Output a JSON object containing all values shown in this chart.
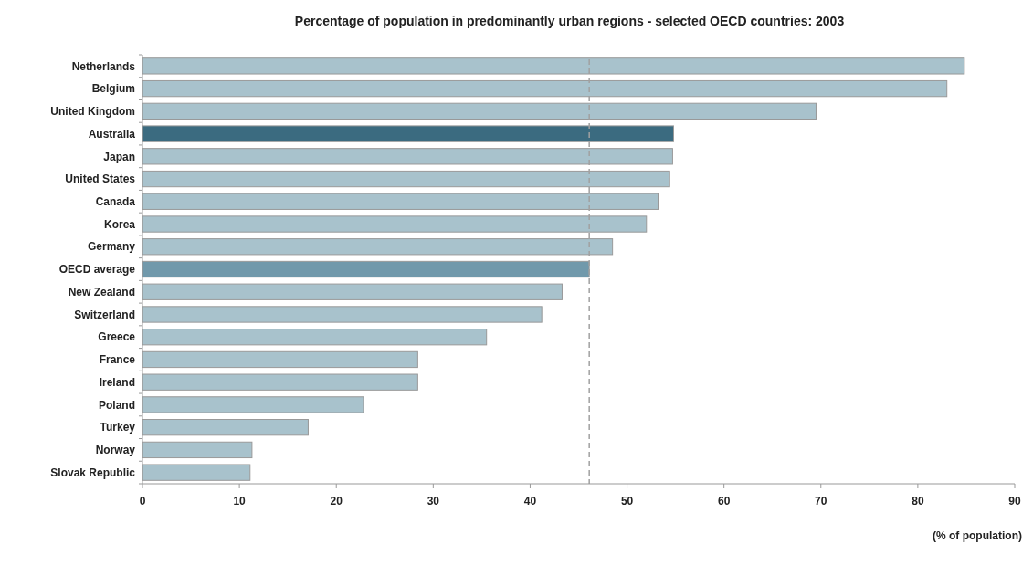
{
  "chart_data": {
    "type": "bar",
    "orientation": "horizontal",
    "title": "Percentage of population in predominantly urban regions - selected OECD countries:  2003",
    "xlabel": "(% of population)",
    "categories": [
      "Netherlands",
      "Belgium",
      "United Kingdom",
      "Australia",
      "Japan",
      "United States",
      "Canada",
      "Korea",
      "Germany",
      "OECD average",
      "New Zealand",
      "Switzerland",
      "Greece",
      "France",
      "Ireland",
      "Poland",
      "Turkey",
      "Norway",
      "Slovak Republic"
    ],
    "values": [
      84.8,
      83.0,
      69.5,
      54.8,
      54.7,
      54.4,
      53.2,
      52.0,
      48.5,
      46.1,
      43.3,
      41.2,
      35.5,
      28.4,
      28.4,
      22.8,
      17.1,
      11.3,
      11.1
    ],
    "colors": [
      "#a8c2cc",
      "#a8c2cc",
      "#a8c2cc",
      "#3b6b80",
      "#a8c2cc",
      "#a8c2cc",
      "#a8c2cc",
      "#a8c2cc",
      "#a8c2cc",
      "#7199ab",
      "#a8c2cc",
      "#a8c2cc",
      "#a8c2cc",
      "#a8c2cc",
      "#a8c2cc",
      "#a8c2cc",
      "#a8c2cc",
      "#a8c2cc",
      "#a8c2cc"
    ],
    "xlim": [
      0,
      90
    ],
    "xticks": [
      0,
      10,
      20,
      30,
      40,
      50,
      60,
      70,
      80,
      90
    ],
    "ref_lines": [
      {
        "axis": "x",
        "value": 46.1,
        "color": "#a0a0a0",
        "line_style": "dashed"
      }
    ],
    "grid": false
  }
}
